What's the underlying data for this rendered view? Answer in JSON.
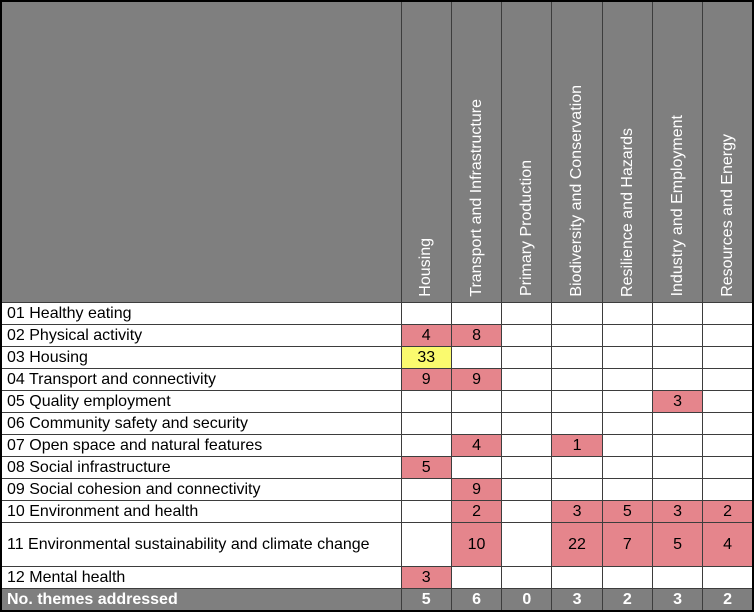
{
  "chart_data": {
    "type": "heatmap",
    "columns": [
      "Housing",
      "Transport and Infrastructure",
      "Primary Production",
      "Biodiversity and Conservation",
      "Resilience and Hazards",
      "Industry and Employment",
      "Resources and Energy"
    ],
    "rows": [
      {
        "label": "01 Healthy eating",
        "values": [
          null,
          null,
          null,
          null,
          null,
          null,
          null
        ]
      },
      {
        "label": "02 Physical activity",
        "values": [
          4,
          8,
          null,
          null,
          null,
          null,
          null
        ]
      },
      {
        "label": "03 Housing",
        "values": [
          33,
          null,
          null,
          null,
          null,
          null,
          null
        ]
      },
      {
        "label": "04 Transport and connectivity",
        "values": [
          9,
          9,
          null,
          null,
          null,
          null,
          null
        ]
      },
      {
        "label": "05 Quality employment",
        "values": [
          null,
          null,
          null,
          null,
          null,
          3,
          null
        ]
      },
      {
        "label": "06 Community safety and security",
        "values": [
          null,
          null,
          null,
          null,
          null,
          null,
          null
        ]
      },
      {
        "label": "07 Open space and natural features",
        "values": [
          null,
          4,
          null,
          1,
          null,
          null,
          null
        ]
      },
      {
        "label": "08 Social infrastructure",
        "values": [
          5,
          null,
          null,
          null,
          null,
          null,
          null
        ]
      },
      {
        "label": "09 Social cohesion and connectivity",
        "values": [
          null,
          9,
          null,
          null,
          null,
          null,
          null
        ]
      },
      {
        "label": "10 Environment and health",
        "values": [
          null,
          2,
          null,
          3,
          5,
          3,
          2
        ]
      },
      {
        "label": "11 Environmental sustainability and climate change",
        "values": [
          null,
          10,
          null,
          22,
          7,
          5,
          4
        ]
      },
      {
        "label": "12 Mental health",
        "values": [
          3,
          null,
          null,
          null,
          null,
          null,
          null
        ]
      }
    ],
    "footer": {
      "label": "No. themes addressed",
      "values": [
        5,
        6,
        0,
        3,
        2,
        3,
        2
      ]
    },
    "yellow_cells": [
      [
        2,
        0
      ]
    ],
    "tall_rows": [
      10
    ],
    "colors": {
      "header_bg": "#7f7f7f",
      "footer_bg": "#7f7f7f",
      "highlight": "#e5858c",
      "highlight_max": "#fafa6e",
      "grid": "#3d3d3d",
      "outer_border": "#000000",
      "header_text": "#ffffff",
      "body_text": "#000000"
    },
    "legend_position": "none",
    "grid": true
  }
}
